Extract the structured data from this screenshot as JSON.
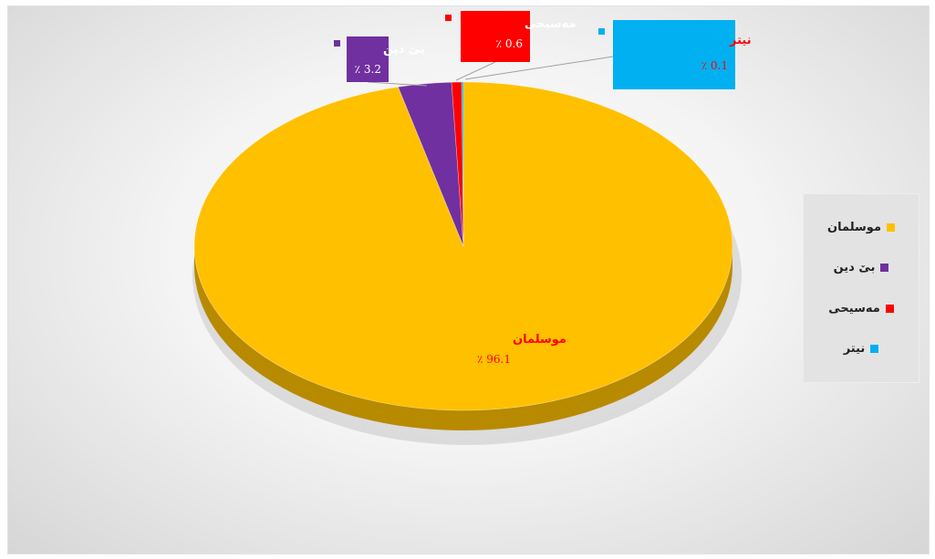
{
  "chart_data": {
    "type": "pie",
    "style": "3d",
    "title": "",
    "categories": [
      "موسلمان",
      "بێ دین",
      "مەسیحی",
      "نیتر"
    ],
    "values": [
      96.1,
      3.2,
      0.6,
      0.1
    ],
    "value_labels": [
      "٪ 96.1",
      "٪ 3.2",
      "٪ 0.6",
      "٪ 0.1"
    ],
    "colors": [
      "#FFC000",
      "#7030A0",
      "#FF0000",
      "#00B0F0"
    ],
    "label_text_colors": [
      "#FF0000",
      "#FFFFFF",
      "#FFFFFF",
      "#FF0000"
    ],
    "label_name_colors": [
      "#FF0000",
      "#FFFFFF",
      "#FFFFFF",
      "#FF0000"
    ],
    "legend_position": "right",
    "legend": [
      "موسلمان",
      "بێ دین",
      "مەسیحی",
      "نیتر"
    ]
  }
}
